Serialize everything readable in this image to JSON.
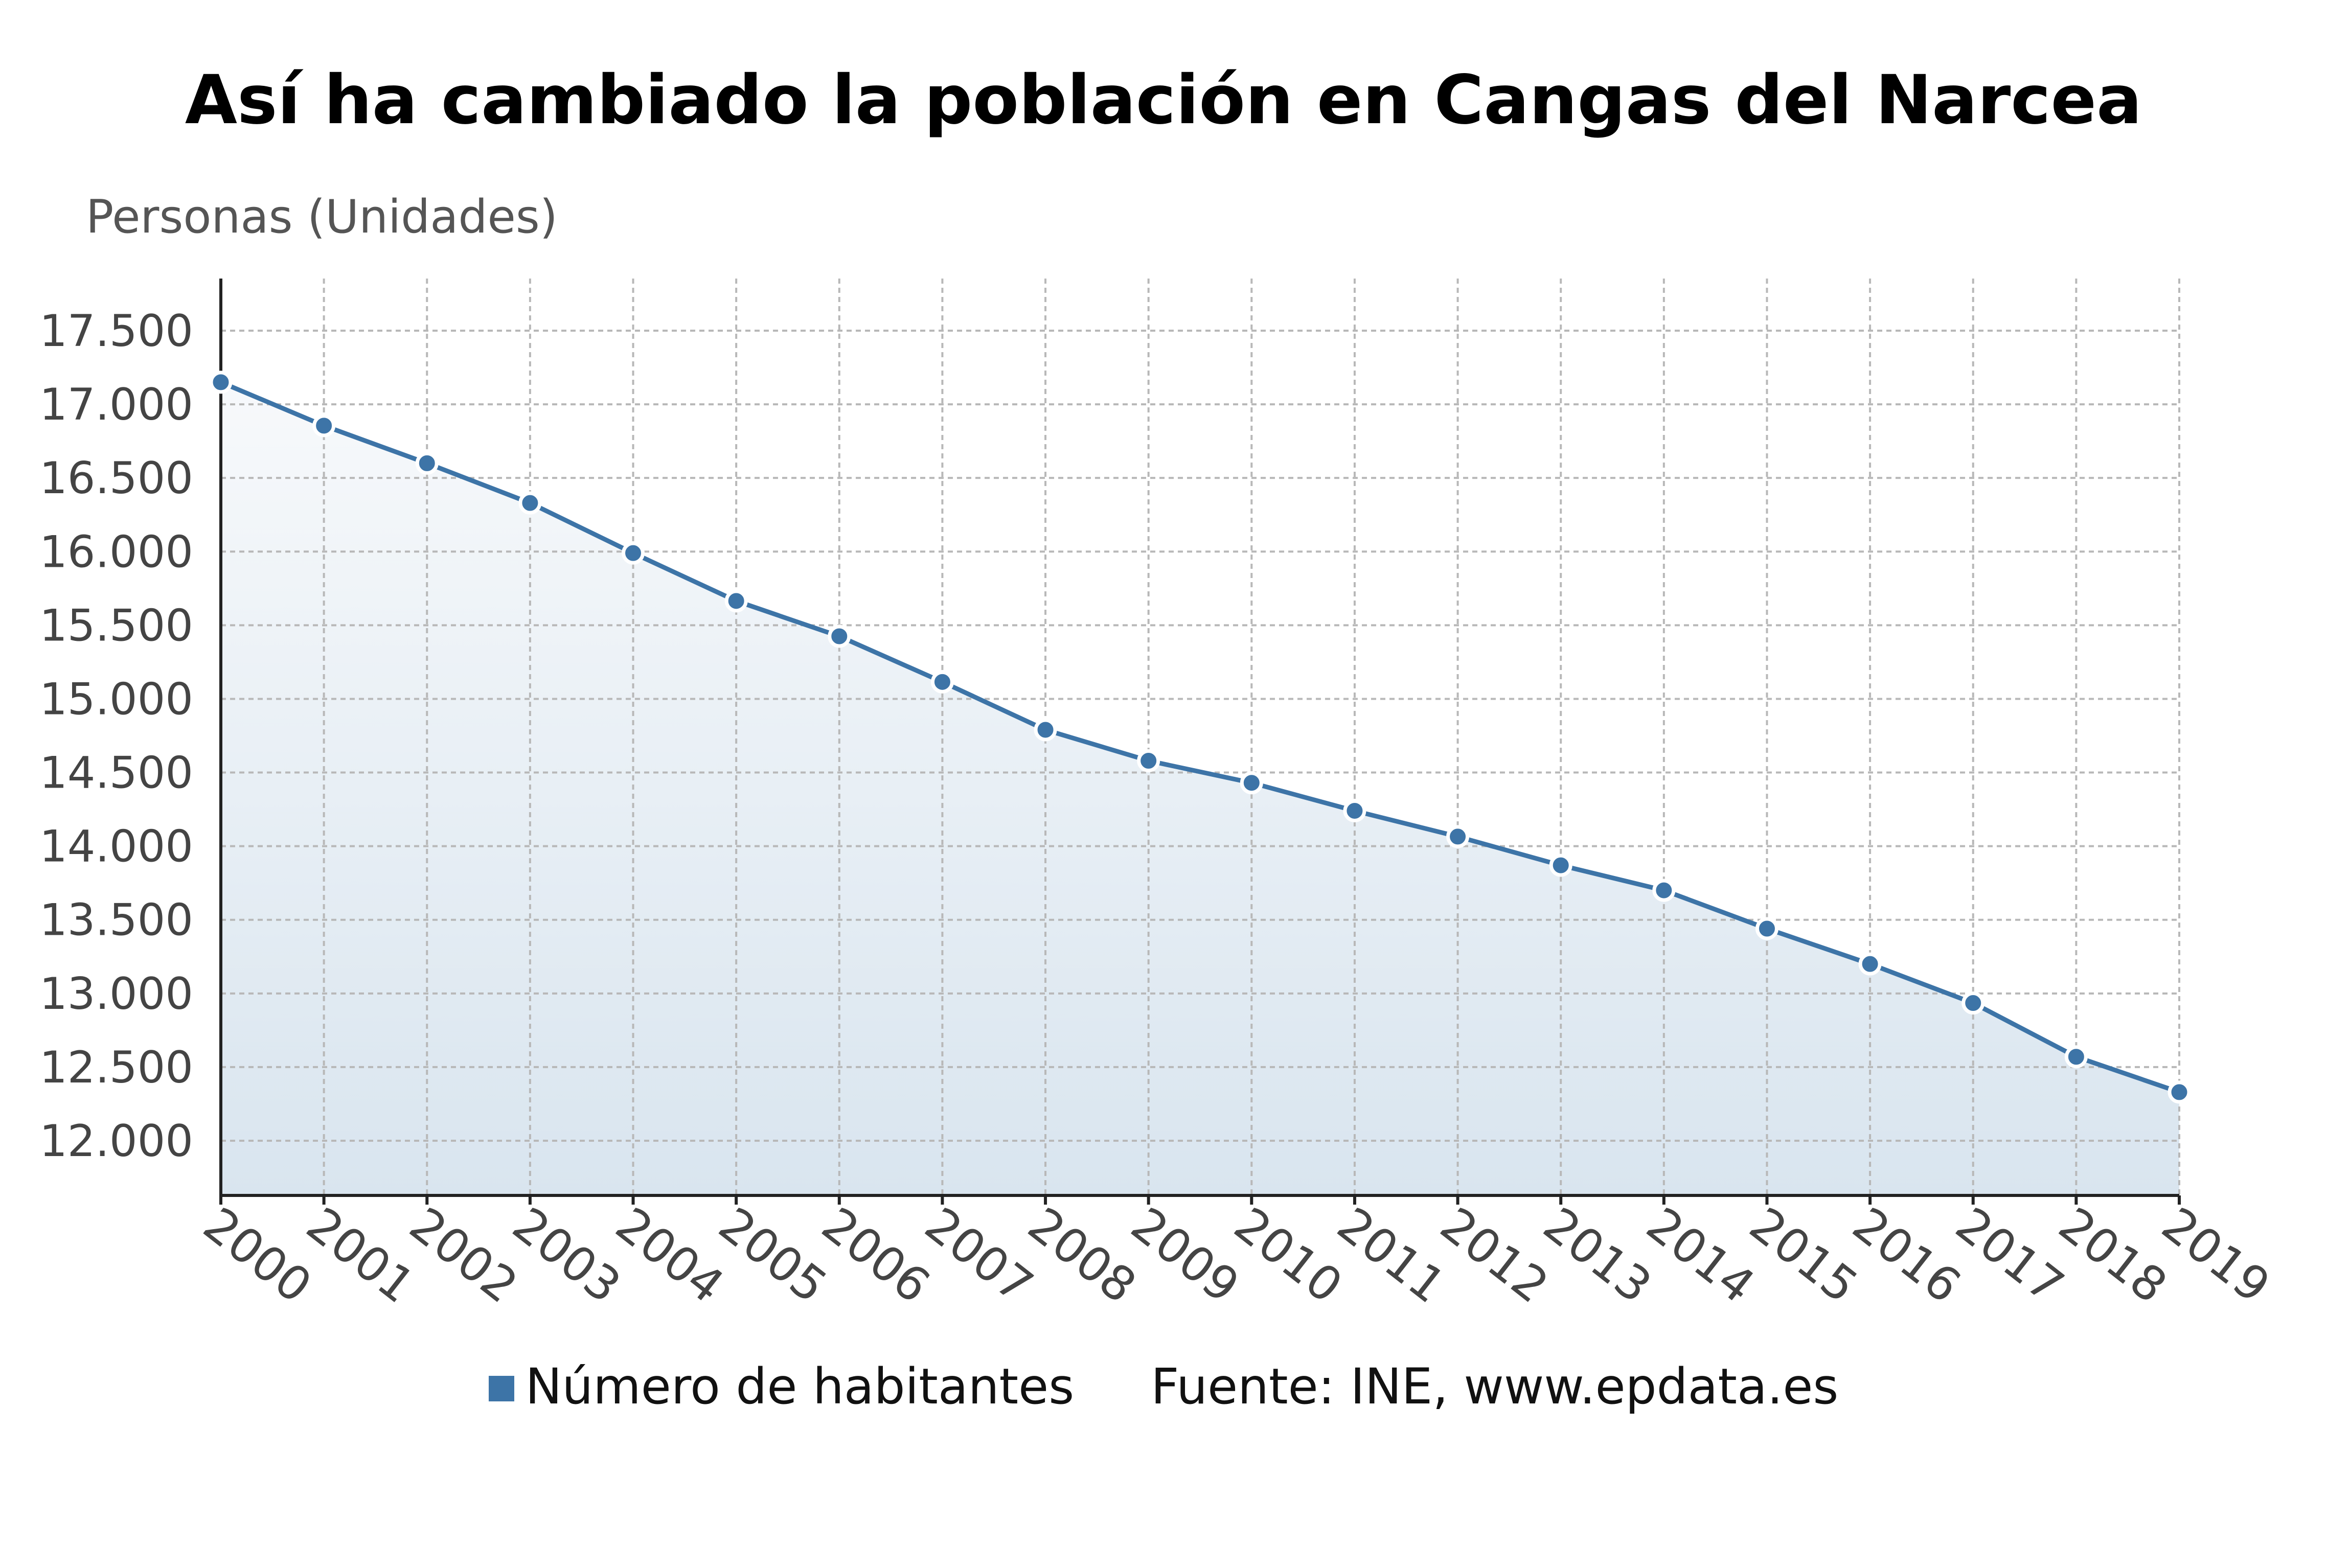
{
  "colors": {
    "series": "#3d74a7",
    "grid": "#b8b8b8",
    "axis": "#222222",
    "tick_label": "#444444",
    "area_top": "#f7f9fb",
    "area_bottom": "#d9e5ef"
  },
  "legend": {
    "series_label": "Número de habitantes",
    "source": "Fuente: INE, www.epdata.es"
  },
  "chart_data": {
    "type": "area",
    "title": "Así ha cambiado la población en Cangas del Narcea",
    "ylabel": "Personas (Unidades)",
    "xlabel": "",
    "x": [
      "2000",
      "2001",
      "2002",
      "2003",
      "2004",
      "2005",
      "2006",
      "2007",
      "2008",
      "2009",
      "2010",
      "2011",
      "2012",
      "2013",
      "2014",
      "2015",
      "2016",
      "2017",
      "2018",
      "2019"
    ],
    "series": [
      {
        "name": "Número de habitantes",
        "values": [
          17150,
          16855,
          16600,
          16330,
          15990,
          15665,
          15425,
          15115,
          14790,
          14580,
          14430,
          14240,
          14065,
          13870,
          13700,
          13440,
          13200,
          12935,
          12570,
          12330
        ]
      }
    ],
    "ylim": [
      11620,
      17870
    ],
    "yticks": [
      12000,
      12500,
      13000,
      13500,
      14000,
      14500,
      15000,
      15500,
      16000,
      16500,
      17000,
      17500
    ],
    "ytick_labels": [
      "12.000",
      "12.500",
      "13.000",
      "13.500",
      "14.000",
      "14.500",
      "15.000",
      "15.500",
      "16.000",
      "16.500",
      "17.000",
      "17.500"
    ],
    "grid": true,
    "legend_position": "bottom"
  }
}
